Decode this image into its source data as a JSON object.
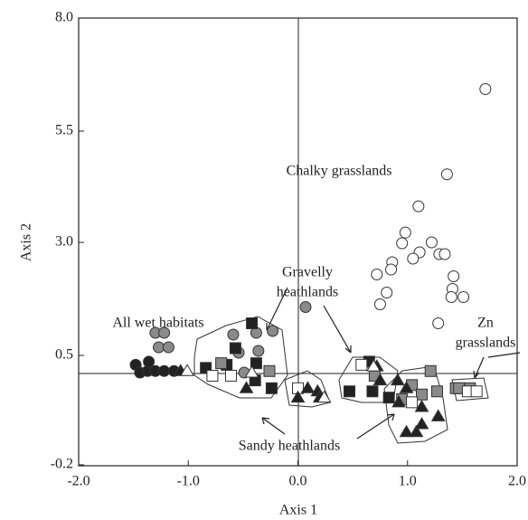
{
  "chart_data": {
    "type": "scatter",
    "xlabel": "Axis 1",
    "ylabel": "Axis 2",
    "xlim": [
      -2.0,
      2.0
    ],
    "xticks": [
      {
        "value": -2,
        "label": "-2.0"
      },
      {
        "value": -1,
        "label": "-1.0"
      },
      {
        "value": 0,
        "label": "0.0"
      },
      {
        "value": 1,
        "label": "1.0"
      },
      {
        "value": 2,
        "label": "2.0"
      }
    ],
    "ylim": [
      -0.2,
      8.0
    ],
    "yticks": [
      {
        "value": 8,
        "label": "8.0"
      },
      {
        "value": 5.5,
        "label": "5.5"
      },
      {
        "value": 3,
        "label": "3.0"
      },
      {
        "value": 0.5,
        "label": "0.5"
      },
      {
        "value": -0.2,
        "label": "-0.2"
      }
    ],
    "annotations": [
      [
        "Chalky grasslands"
      ],
      [
        "Gravelly",
        "heathlands"
      ],
      [
        "All wet habitats"
      ],
      [
        "Zn",
        "grasslands"
      ],
      [
        "Sandy heathlands"
      ]
    ],
    "series": [
      {
        "marker": "circle",
        "color": "#ffffff",
        "x": [
          1.71,
          1.36,
          1.1,
          0.98,
          0.95,
          1.22,
          1.11,
          1.05,
          1.29,
          1.34,
          0.86,
          0.85,
          0.72,
          1.42,
          1.41,
          1.4,
          1.51,
          0.81,
          0.75,
          1.28
        ],
        "values": [
          6.43,
          4.53,
          3.81,
          3.22,
          2.98,
          3.0,
          2.78,
          2.64,
          2.74,
          2.74,
          2.56,
          2.4,
          2.29,
          2.25,
          1.97,
          1.79,
          1.79,
          1.89,
          1.63,
          1.21
        ]
      },
      {
        "marker": "circle",
        "color": "#222222",
        "x": [
          -1.48,
          -1.44,
          -1.37,
          -1.3,
          -1.22,
          -1.13,
          -1.36
        ],
        "values": [
          0.44,
          0.39,
          0.4,
          0.4,
          0.4,
          0.4,
          0.46
        ]
      },
      {
        "marker": "circle",
        "color": "#8a8a8a",
        "x": [
          -1.3,
          -1.22,
          -1.27,
          -1.18,
          -0.59,
          -0.38,
          -0.23,
          -0.54,
          -0.36,
          -0.49,
          0.07
        ],
        "values": [
          1.0,
          1.0,
          0.68,
          0.68,
          0.96,
          1.0,
          1.04,
          0.56,
          0.6,
          0.39,
          1.57
        ]
      },
      {
        "marker": "square",
        "color": "#222222",
        "x": [
          -0.84,
          -0.65,
          -0.42,
          -0.38,
          -0.57,
          -0.24,
          0.47,
          0.65,
          0.68,
          0.83,
          -0.39
        ],
        "values": [
          0.42,
          0.44,
          1.21,
          0.45,
          0.66,
          0.29,
          0.27,
          0.46,
          0.27,
          0.23,
          0.34
        ]
      },
      {
        "marker": "square",
        "color": "#8a8a8a",
        "x": [
          -0.7,
          -0.26,
          0.7,
          0.95,
          1.04,
          1.13,
          1.21,
          1.27,
          1.44,
          1.57,
          1.47
        ],
        "values": [
          0.45,
          0.4,
          0.37,
          0.22,
          0.31,
          0.25,
          0.4,
          0.27,
          0.29,
          0.29,
          0.29
        ]
      },
      {
        "marker": "square",
        "color": "#ffffff",
        "x": [
          -0.78,
          -0.61,
          0.0,
          0.58,
          1.55,
          1.63,
          1.04
        ],
        "values": [
          0.37,
          0.37,
          0.29,
          0.44,
          0.27,
          0.27,
          0.2
        ]
      },
      {
        "marker": "triangle",
        "color": "#222222",
        "x": [
          -1.07,
          -0.47,
          0.09,
          0.18,
          0.0,
          0.2,
          0.72,
          0.75,
          0.91,
          0.99,
          0.99,
          1.08,
          1.13,
          1.28,
          1.13,
          0.92
        ],
        "values": [
          0.4,
          0.29,
          0.29,
          0.27,
          0.23,
          0.23,
          0.43,
          0.34,
          0.34,
          0.29,
          0.01,
          0.01,
          0.06,
          0.11,
          0.17,
          0.2
        ]
      },
      {
        "marker": "triangle",
        "color": "#ffffff",
        "x": [
          -1.01,
          -0.42,
          0.24,
          0.69
        ],
        "values": [
          0.4,
          0.39,
          0.23,
          0.43
        ]
      }
    ]
  }
}
